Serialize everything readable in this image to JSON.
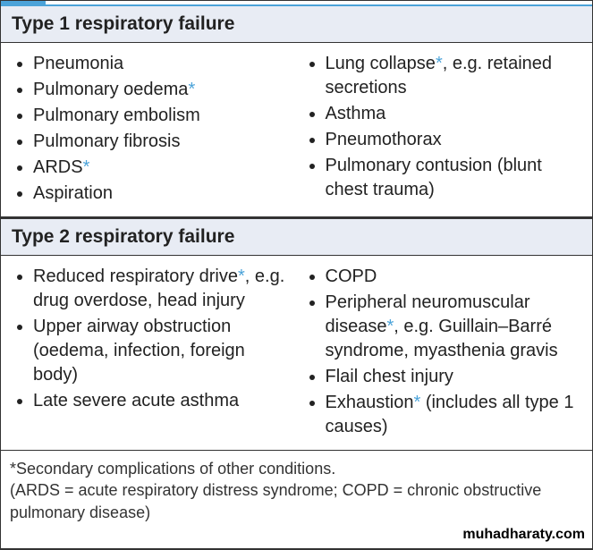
{
  "colors": {
    "header_bg": "#e8ecf4",
    "border": "#333333",
    "asterisk": "#4ba3d9",
    "text": "#222222",
    "accent": "#4ba3d9"
  },
  "type1": {
    "header": "Type 1 respiratory failure",
    "left": [
      {
        "text": "Pneumonia",
        "star": false
      },
      {
        "text": "Pulmonary oedema",
        "star": true
      },
      {
        "text": "Pulmonary embolism",
        "star": false
      },
      {
        "text": "Pulmonary fibrosis",
        "star": false
      },
      {
        "text": "ARDS",
        "star": true
      },
      {
        "text": "Aspiration",
        "star": false
      }
    ],
    "right": [
      {
        "text": "Lung collapse",
        "star": true,
        "suffix": ", e.g. retained secretions"
      },
      {
        "text": "Asthma",
        "star": false
      },
      {
        "text": "Pneumothorax",
        "star": false
      },
      {
        "text": "Pulmonary contusion (blunt chest trauma)",
        "star": false
      }
    ]
  },
  "type2": {
    "header": "Type 2 respiratory failure",
    "left": [
      {
        "text": "Reduced respiratory drive",
        "star": true,
        "suffix": ", e.g. drug overdose, head injury"
      },
      {
        "text": "Upper airway obstruction (oedema, infection, foreign body)",
        "star": false
      },
      {
        "text": "Late severe acute asthma",
        "star": false
      }
    ],
    "right": [
      {
        "text": "COPD",
        "star": false
      },
      {
        "text": "Peripheral neuromuscular disease",
        "star": true,
        "suffix": ", e.g. Guillain–Barré syndrome, myasthenia gravis"
      },
      {
        "text": "Flail chest injury",
        "star": false
      },
      {
        "text": "Exhaustion",
        "star": true,
        "suffix": " (includes all type 1 causes)"
      }
    ]
  },
  "footnote": {
    "line1": "*Secondary complications of other conditions.",
    "line2": "(ARDS = acute respiratory distress syndrome; COPD = chronic obstructive pulmonary disease)"
  },
  "watermark": "muhadharaty.com"
}
